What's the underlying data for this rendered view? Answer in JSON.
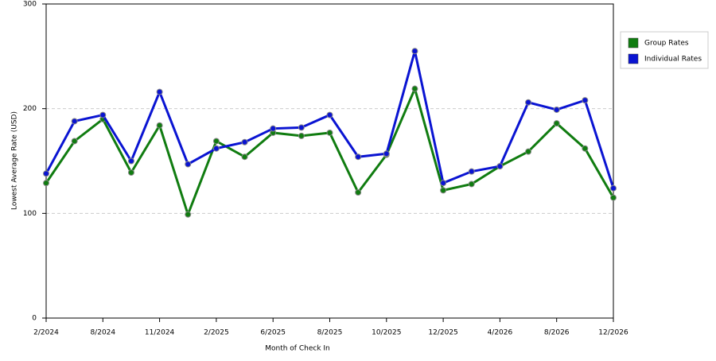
{
  "chart_data": {
    "type": "line",
    "x_label": "Month of Check In",
    "y_label": "Lowest Average Rate (USD)",
    "categories": [
      "2/2024",
      null,
      "8/2024",
      null,
      "11/2024",
      null,
      "2/2025",
      null,
      "6/2025",
      null,
      "8/2025",
      null,
      "10/2025",
      null,
      "12/2025",
      null,
      "4/2026",
      null,
      "8/2026",
      null,
      "12/2026"
    ],
    "series": [
      {
        "name": "Group Rates",
        "color": "#107c10",
        "values": [
          129,
          169,
          190,
          139,
          184,
          99,
          169,
          154,
          177,
          174,
          177,
          120,
          156,
          219,
          122,
          128,
          145,
          159,
          186,
          162,
          115
        ]
      },
      {
        "name": "Individual Rates",
        "color": "#0a14d2",
        "values": [
          138,
          188,
          194,
          150,
          216,
          147,
          162,
          168,
          181,
          182,
          194,
          154,
          157,
          255,
          129,
          140,
          145,
          206,
          199,
          208,
          124
        ]
      }
    ],
    "ylim": [
      0,
      300
    ],
    "yticks": [
      0,
      100,
      200,
      300
    ],
    "grid": true,
    "legend": "top-right"
  }
}
